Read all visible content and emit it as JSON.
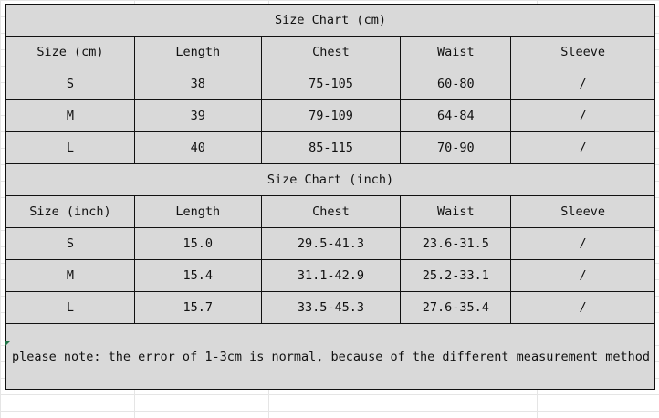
{
  "cm_table": {
    "title": "Size Chart (cm)",
    "headers": [
      "Size (cm)",
      "Length",
      "Chest",
      "Waist",
      "Sleeve"
    ],
    "rows": [
      [
        "S",
        "38",
        "75-105",
        "60-80",
        "/"
      ],
      [
        "M",
        "39",
        "79-109",
        "64-84",
        "/"
      ],
      [
        "L",
        "40",
        "85-115",
        "70-90",
        "/"
      ]
    ]
  },
  "inch_table": {
    "title": "Size Chart (inch)",
    "headers": [
      "Size (inch)",
      "Length",
      "Chest",
      "Waist",
      "Sleeve"
    ],
    "rows": [
      [
        "S",
        "15.0",
        "29.5-41.3",
        "23.6-31.5",
        "/"
      ],
      [
        "M",
        "15.4",
        "31.1-42.9",
        "25.2-33.1",
        "/"
      ],
      [
        "L",
        "15.7",
        "33.5-45.3",
        "27.6-35.4",
        "/"
      ]
    ]
  },
  "note": "please note: the error of 1-3cm is normal, because of the different measurement method",
  "colors": {
    "cell_bg": "#d9d9d9",
    "border": "#111111",
    "selection_marker": "#217346"
  }
}
